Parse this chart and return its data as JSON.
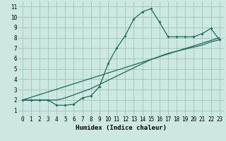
{
  "xlabel": "Humidex (Indice chaleur)",
  "bg_color": "#cce8e0",
  "grid_color": "#9ec4bc",
  "line_color": "#1a6b5a",
  "xlim": [
    -0.5,
    23.5
  ],
  "ylim": [
    0.5,
    11.5
  ],
  "xticks": [
    0,
    1,
    2,
    3,
    4,
    5,
    6,
    7,
    8,
    9,
    10,
    11,
    12,
    13,
    14,
    15,
    16,
    17,
    18,
    19,
    20,
    21,
    22,
    23
  ],
  "yticks": [
    1,
    2,
    3,
    4,
    5,
    6,
    7,
    8,
    9,
    10,
    11
  ],
  "curve1_x": [
    0,
    1,
    2,
    3,
    4,
    5,
    6,
    7,
    8,
    9,
    10,
    11,
    12,
    13,
    14,
    15,
    16,
    17,
    18,
    19,
    20,
    21,
    22,
    23
  ],
  "curve1_y": [
    2.0,
    2.0,
    2.0,
    2.0,
    1.5,
    1.5,
    1.6,
    2.2,
    2.4,
    3.3,
    5.5,
    7.0,
    8.2,
    9.8,
    10.5,
    10.8,
    9.5,
    8.1,
    8.1,
    8.1,
    8.1,
    8.4,
    8.9,
    7.8
  ],
  "curve2_x": [
    0,
    1,
    2,
    3,
    4,
    5,
    6,
    7,
    8,
    9,
    10,
    11,
    12,
    13,
    14,
    15,
    16,
    17,
    18,
    19,
    20,
    21,
    22,
    23
  ],
  "curve2_y": [
    2.0,
    2.0,
    2.0,
    2.0,
    2.0,
    2.2,
    2.5,
    2.8,
    3.1,
    3.5,
    3.9,
    4.3,
    4.7,
    5.1,
    5.5,
    5.9,
    6.2,
    6.5,
    6.7,
    6.9,
    7.1,
    7.3,
    7.6,
    7.8
  ],
  "curve3_x": [
    0,
    23
  ],
  "curve3_y": [
    2.0,
    8.0
  ]
}
